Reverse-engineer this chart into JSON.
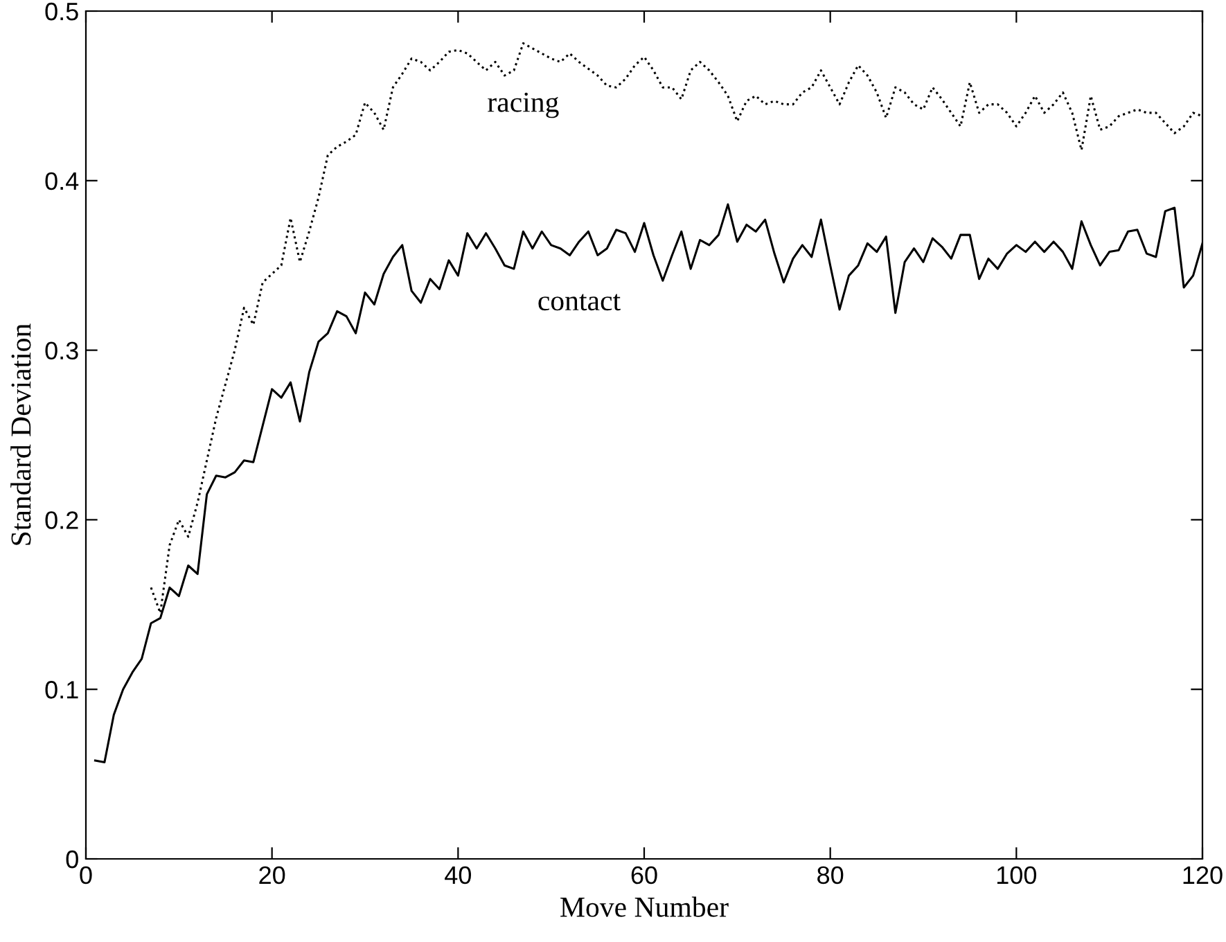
{
  "chart_data": {
    "type": "line",
    "xlabel": "Move Number",
    "ylabel": "Standard Deviation",
    "xlim": [
      0,
      120
    ],
    "xticks": [
      0,
      20,
      40,
      60,
      80,
      100,
      120
    ],
    "ylim": [
      0,
      0.5
    ],
    "yticks": [
      0,
      0.1,
      0.2,
      0.3,
      0.4,
      0.5
    ],
    "grid": false,
    "series": [
      {
        "name": "contact",
        "color": "#000000",
        "line_style": "solid",
        "x": [
          1,
          2,
          3,
          4,
          5,
          6,
          7,
          8,
          9,
          10,
          11,
          12,
          13,
          14,
          15,
          16,
          17,
          18,
          20,
          21,
          22,
          23,
          24,
          25,
          26,
          27,
          28,
          29,
          30,
          31,
          32,
          33,
          34,
          35,
          36,
          37,
          38,
          39,
          40,
          41,
          42,
          43,
          44,
          45,
          46,
          47,
          48,
          49,
          50,
          51,
          52,
          53,
          54,
          55,
          56,
          57,
          58,
          59,
          60,
          61,
          62,
          63,
          64,
          65,
          66,
          67,
          68,
          69,
          70,
          71,
          72,
          73,
          74,
          75,
          76,
          77,
          78,
          79,
          80,
          81,
          82,
          83,
          84,
          85,
          86,
          87,
          88,
          89,
          90,
          91,
          92,
          93,
          94,
          95,
          96,
          97,
          98,
          99,
          100,
          101,
          102,
          103,
          104,
          105,
          106,
          107,
          108,
          109,
          110,
          111,
          112,
          113,
          114,
          115,
          116,
          117,
          118,
          119,
          120
        ],
        "values": [
          0.058,
          0.057,
          0.085,
          0.1,
          0.11,
          0.118,
          0.139,
          0.142,
          0.16,
          0.155,
          0.173,
          0.168,
          0.215,
          0.226,
          0.225,
          0.228,
          0.235,
          0.234,
          0.277,
          0.272,
          0.281,
          0.258,
          0.287,
          0.305,
          0.31,
          0.323,
          0.32,
          0.31,
          0.334,
          0.327,
          0.345,
          0.355,
          0.362,
          0.335,
          0.328,
          0.342,
          0.336,
          0.353,
          0.344,
          0.369,
          0.36,
          0.369,
          0.36,
          0.35,
          0.348,
          0.37,
          0.36,
          0.37,
          0.362,
          0.36,
          0.356,
          0.364,
          0.37,
          0.356,
          0.36,
          0.371,
          0.369,
          0.358,
          0.375,
          0.356,
          0.341,
          0.356,
          0.37,
          0.348,
          0.365,
          0.362,
          0.368,
          0.386,
          0.364,
          0.374,
          0.37,
          0.377,
          0.357,
          0.34,
          0.354,
          0.362,
          0.355,
          0.377,
          0.35,
          0.324,
          0.344,
          0.35,
          0.363,
          0.358,
          0.367,
          0.322,
          0.352,
          0.36,
          0.352,
          0.366,
          0.361,
          0.354,
          0.368,
          0.368,
          0.342,
          0.354,
          0.348,
          0.357,
          0.362,
          0.358,
          0.364,
          0.358,
          0.364,
          0.358,
          0.348,
          0.376,
          0.362,
          0.35,
          0.358,
          0.359,
          0.37,
          0.371,
          0.357,
          0.355,
          0.382,
          0.384,
          0.337,
          0.344,
          0.363
        ]
      },
      {
        "name": "racing",
        "color": "#000000",
        "line_style": "dotted",
        "x": [
          7,
          8,
          9,
          10,
          11,
          12,
          13,
          14,
          15,
          16,
          17,
          18,
          19,
          20,
          21,
          22,
          23,
          24,
          25,
          26,
          27,
          28,
          29,
          30,
          31,
          32,
          33,
          34,
          35,
          36,
          37,
          38,
          39,
          40,
          41,
          42,
          43,
          44,
          45,
          46,
          47,
          48,
          49,
          50,
          51,
          52,
          53,
          54,
          55,
          56,
          57,
          58,
          59,
          60,
          61,
          62,
          63,
          64,
          65,
          66,
          67,
          68,
          69,
          70,
          71,
          72,
          73,
          74,
          75,
          76,
          77,
          78,
          79,
          80,
          81,
          82,
          83,
          84,
          85,
          86,
          87,
          88,
          89,
          90,
          91,
          92,
          93,
          94,
          95,
          96,
          97,
          98,
          99,
          100,
          101,
          102,
          103,
          104,
          105,
          106,
          107,
          108,
          109,
          110,
          111,
          112,
          113,
          114,
          115,
          116,
          117,
          118,
          119,
          120
        ],
        "values": [
          0.16,
          0.145,
          0.185,
          0.2,
          0.19,
          0.21,
          0.235,
          0.26,
          0.28,
          0.3,
          0.325,
          0.315,
          0.34,
          0.345,
          0.35,
          0.378,
          0.352,
          0.37,
          0.39,
          0.415,
          0.42,
          0.423,
          0.427,
          0.446,
          0.44,
          0.43,
          0.455,
          0.463,
          0.472,
          0.47,
          0.465,
          0.47,
          0.476,
          0.477,
          0.475,
          0.47,
          0.465,
          0.47,
          0.462,
          0.465,
          0.481,
          0.478,
          0.475,
          0.472,
          0.47,
          0.475,
          0.47,
          0.466,
          0.462,
          0.456,
          0.455,
          0.46,
          0.468,
          0.473,
          0.465,
          0.455,
          0.455,
          0.448,
          0.465,
          0.47,
          0.465,
          0.458,
          0.45,
          0.435,
          0.447,
          0.45,
          0.445,
          0.447,
          0.445,
          0.445,
          0.452,
          0.455,
          0.465,
          0.455,
          0.445,
          0.458,
          0.468,
          0.462,
          0.452,
          0.437,
          0.455,
          0.452,
          0.445,
          0.442,
          0.455,
          0.448,
          0.44,
          0.432,
          0.458,
          0.44,
          0.445,
          0.445,
          0.44,
          0.432,
          0.44,
          0.45,
          0.44,
          0.445,
          0.452,
          0.44,
          0.418,
          0.45,
          0.43,
          0.432,
          0.438,
          0.44,
          0.442,
          0.44,
          0.44,
          0.434,
          0.428,
          0.432,
          0.44,
          0.438
        ]
      }
    ]
  }
}
